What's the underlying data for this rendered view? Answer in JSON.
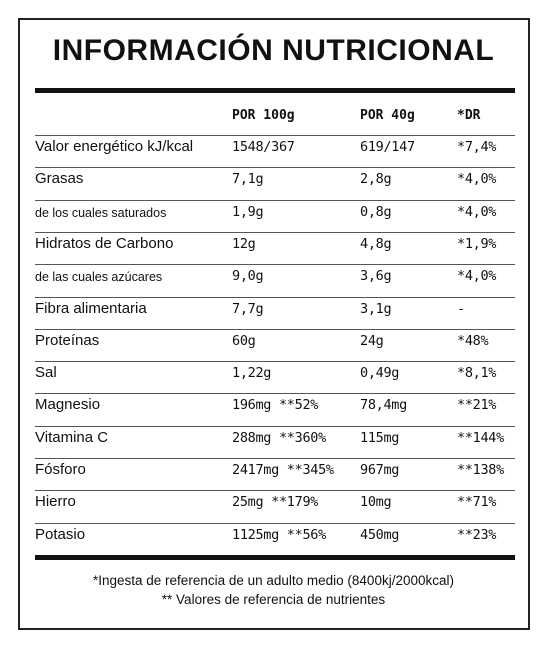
{
  "title": "INFORMACIÓN NUTRICIONAL",
  "table": {
    "columns": [
      "POR 100g",
      "POR 40g",
      "*DR"
    ],
    "rows": [
      [
        "Valor energético kJ/kcal",
        "1548/367",
        "619/147",
        "*7,4%"
      ],
      [
        "Grasas",
        "7,1g",
        "2,8g",
        "*4,0%"
      ],
      [
        "de los cuales saturados",
        "1,9g",
        "0,8g",
        "*4,0%"
      ],
      [
        "Hidratos de Carbono",
        "12g",
        "4,8g",
        "*1,9%"
      ],
      [
        "de las cuales azúcares",
        "9,0g",
        "3,6g",
        "*4,0%"
      ],
      [
        "Fibra alimentaria",
        "7,7g",
        "3,1g",
        "-"
      ],
      [
        "Proteínas",
        "60g",
        "24g",
        "*48%"
      ],
      [
        "Sal",
        "1,22g",
        "0,49g",
        "*8,1%"
      ],
      [
        "Magnesio",
        "196mg **52%",
        "78,4mg",
        "**21%"
      ],
      [
        "Vitamina C",
        "288mg **360%",
        "115mg",
        "**144%"
      ],
      [
        "Fósforo",
        "2417mg **345%",
        "967mg",
        "**138%"
      ],
      [
        "Hierro",
        "25mg **179%",
        "10mg",
        "**71%"
      ],
      [
        "Potasio",
        "1125mg **56%",
        "450mg",
        "**23%"
      ]
    ]
  },
  "footnotes": [
    "*Ingesta de referencia de un adulto medio (8400kj/2000kcal)",
    "** Valores de referencia de nutrientes"
  ]
}
